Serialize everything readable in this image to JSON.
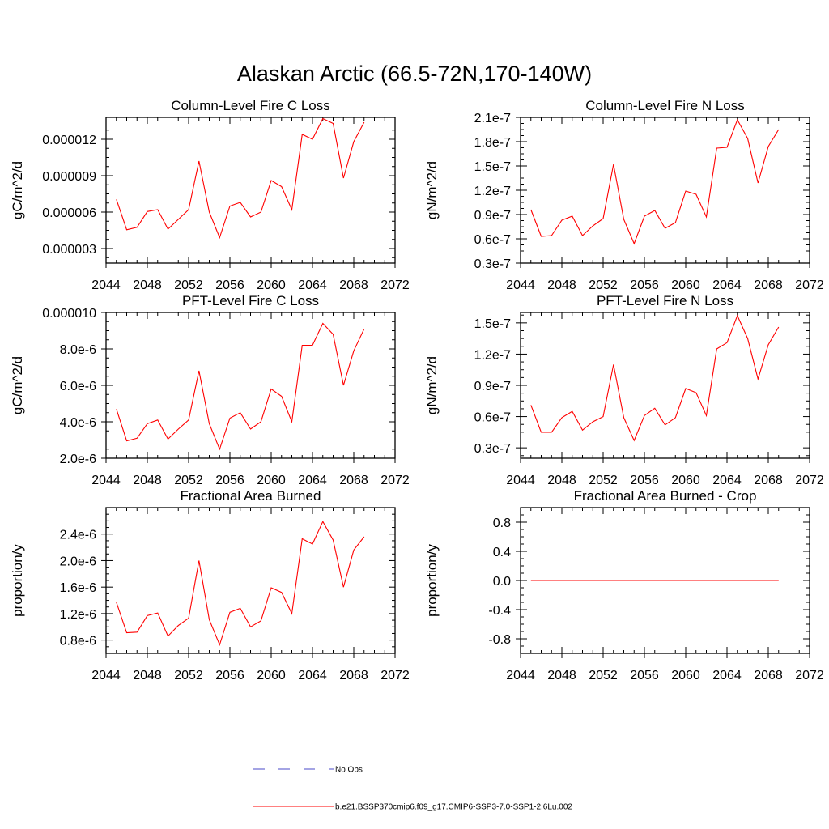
{
  "figure": {
    "title": "Alaskan Arctic (66.5-72N,170-140W)"
  },
  "legend": [
    {
      "label": "No Obs",
      "color": "#4a4ac8",
      "dash": "dashed"
    },
    {
      "label": "b.e21.BSSP370cmip6.f09_g17.CMIP6-SSP3-7.0-SSP1-2.6Lu.002",
      "color": "#ff0000",
      "dash": "solid"
    }
  ],
  "chart_data": [
    {
      "type": "line",
      "title": "Column-Level Fire C Loss",
      "ylabel": "gC/m^2/d",
      "xlim": [
        2044,
        2072
      ],
      "xticks": [
        2044,
        2048,
        2052,
        2056,
        2060,
        2064,
        2068,
        2072
      ],
      "ylim": [
        1.8e-06,
        1.38e-05
      ],
      "yticks": [
        3e-06,
        6e-06,
        9e-06,
        1.2e-05
      ],
      "ytick_labels": [
        "0.000003",
        "0.000006",
        "0.000009",
        "0.000012"
      ],
      "x": [
        2045,
        2046,
        2047,
        2048,
        2049,
        2050,
        2051,
        2052,
        2053,
        2054,
        2055,
        2056,
        2057,
        2058,
        2059,
        2060,
        2061,
        2062,
        2063,
        2064,
        2065,
        2066,
        2067,
        2068,
        2069
      ],
      "series": [
        {
          "color": "#ff0000",
          "values": [
            7.05e-06,
            4.55e-06,
            4.75e-06,
            6.05e-06,
            6.2e-06,
            4.6e-06,
            5.4e-06,
            6.2e-06,
            1.02e-05,
            6e-06,
            3.9e-06,
            6.5e-06,
            6.8e-06,
            5.6e-06,
            6e-06,
            8.6e-06,
            8.1e-06,
            6.2e-06,
            1.24e-05,
            1.2e-05,
            1.37e-05,
            1.33e-05,
            8.8e-06,
            1.18e-05,
            1.34e-05
          ]
        }
      ]
    },
    {
      "type": "line",
      "title": "Column-Level Fire N Loss",
      "ylabel": "gN/m^2/d",
      "xlim": [
        2044,
        2072
      ],
      "xticks": [
        2044,
        2048,
        2052,
        2056,
        2060,
        2064,
        2068,
        2072
      ],
      "ylim": [
        3e-08,
        2.1e-07
      ],
      "yticks": [
        3e-08,
        6e-08,
        9e-08,
        1.2e-07,
        1.5e-07,
        1.8e-07,
        2.1e-07
      ],
      "ytick_labels": [
        "0.3e-7",
        "0.6e-7",
        "0.9e-7",
        "1.2e-7",
        "1.5e-7",
        "1.8e-7",
        "2.1e-7"
      ],
      "x": [
        2045,
        2046,
        2047,
        2048,
        2049,
        2050,
        2051,
        2052,
        2053,
        2054,
        2055,
        2056,
        2057,
        2058,
        2059,
        2060,
        2061,
        2062,
        2063,
        2064,
        2065,
        2066,
        2067,
        2068,
        2069
      ],
      "series": [
        {
          "color": "#ff0000",
          "values": [
            9.6e-08,
            6.3e-08,
            6.4e-08,
            8.3e-08,
            8.8e-08,
            6.4e-08,
            7.6e-08,
            8.5e-08,
            1.52e-07,
            8.4e-08,
            5.4e-08,
            8.8e-08,
            9.5e-08,
            7.3e-08,
            8e-08,
            1.19e-07,
            1.15e-07,
            8.7e-08,
            1.72e-07,
            1.73e-07,
            2.07e-07,
            1.84e-07,
            1.29e-07,
            1.74e-07,
            1.95e-07
          ]
        }
      ]
    },
    {
      "type": "line",
      "title": "PFT-Level Fire C Loss",
      "ylabel": "gC/m^2/d",
      "xlim": [
        2044,
        2072
      ],
      "xticks": [
        2044,
        2048,
        2052,
        2056,
        2060,
        2064,
        2068,
        2072
      ],
      "ylim": [
        2e-06,
        1e-05
      ],
      "yticks": [
        2e-06,
        4e-06,
        6e-06,
        8e-06,
        1e-05
      ],
      "ytick_labels": [
        "2.0e-6",
        "4.0e-6",
        "6.0e-6",
        "8.0e-6",
        "0.000010"
      ],
      "x": [
        2045,
        2046,
        2047,
        2048,
        2049,
        2050,
        2051,
        2052,
        2053,
        2054,
        2055,
        2056,
        2057,
        2058,
        2059,
        2060,
        2061,
        2062,
        2063,
        2064,
        2065,
        2066,
        2067,
        2068,
        2069
      ],
      "series": [
        {
          "color": "#ff0000",
          "values": [
            4.7e-06,
            2.95e-06,
            3.1e-06,
            3.9e-06,
            4.1e-06,
            3.05e-06,
            3.6e-06,
            4.1e-06,
            6.8e-06,
            3.9e-06,
            2.5e-06,
            4.2e-06,
            4.5e-06,
            3.6e-06,
            4e-06,
            5.8e-06,
            5.4e-06,
            4e-06,
            8.2e-06,
            8.2e-06,
            9.4e-06,
            8.8e-06,
            6e-06,
            7.9e-06,
            9.1e-06
          ]
        }
      ]
    },
    {
      "type": "line",
      "title": "PFT-Level Fire N Loss",
      "ylabel": "gN/m^2/d",
      "xlim": [
        2044,
        2072
      ],
      "xticks": [
        2044,
        2048,
        2052,
        2056,
        2060,
        2064,
        2068,
        2072
      ],
      "ylim": [
        2e-08,
        1.6e-07
      ],
      "yticks": [
        3e-08,
        6e-08,
        9e-08,
        1.2e-07,
        1.5e-07
      ],
      "ytick_labels": [
        "0.3e-7",
        "0.6e-7",
        "0.9e-7",
        "1.2e-7",
        "1.5e-7"
      ],
      "x": [
        2045,
        2046,
        2047,
        2048,
        2049,
        2050,
        2051,
        2052,
        2053,
        2054,
        2055,
        2056,
        2057,
        2058,
        2059,
        2060,
        2061,
        2062,
        2063,
        2064,
        2065,
        2066,
        2067,
        2068,
        2069
      ],
      "series": [
        {
          "color": "#ff0000",
          "values": [
            7.1e-08,
            4.5e-08,
            4.5e-08,
            5.9e-08,
            6.5e-08,
            4.7e-08,
            5.5e-08,
            6e-08,
            1.1e-07,
            5.9e-08,
            3.7e-08,
            6.1e-08,
            6.8e-08,
            5.2e-08,
            5.9e-08,
            8.7e-08,
            8.3e-08,
            6.1e-08,
            1.25e-07,
            1.31e-07,
            1.57e-07,
            1.35e-07,
            9.6e-08,
            1.29e-07,
            1.46e-07
          ]
        }
      ]
    },
    {
      "type": "line",
      "title": "Fractional Area Burned",
      "ylabel": "proportion/y",
      "xlim": [
        2044,
        2072
      ],
      "xticks": [
        2044,
        2048,
        2052,
        2056,
        2060,
        2064,
        2068,
        2072
      ],
      "ylim": [
        6e-07,
        2.8e-06
      ],
      "yticks": [
        8e-07,
        1.2e-06,
        1.6e-06,
        2e-06,
        2.4e-06
      ],
      "ytick_labels": [
        "0.8e-6",
        "1.2e-6",
        "1.6e-6",
        "2.0e-6",
        "2.4e-6"
      ],
      "x": [
        2045,
        2046,
        2047,
        2048,
        2049,
        2050,
        2051,
        2052,
        2053,
        2054,
        2055,
        2056,
        2057,
        2058,
        2059,
        2060,
        2061,
        2062,
        2063,
        2064,
        2065,
        2066,
        2067,
        2068,
        2069
      ],
      "series": [
        {
          "color": "#ff0000",
          "values": [
            1.37e-06,
            9.1e-07,
            9.2e-07,
            1.17e-06,
            1.21e-06,
            8.6e-07,
            1.02e-06,
            1.13e-06,
            2e-06,
            1.11e-06,
            7.3e-07,
            1.22e-06,
            1.28e-06,
            1e-06,
            1.09e-06,
            1.59e-06,
            1.52e-06,
            1.2e-06,
            2.33e-06,
            2.25e-06,
            2.59e-06,
            2.31e-06,
            1.6e-06,
            2.16e-06,
            2.36e-06
          ]
        }
      ]
    },
    {
      "type": "line",
      "title": "Fractional Area Burned - Crop",
      "ylabel": "proportion/y",
      "xlim": [
        2044,
        2072
      ],
      "xticks": [
        2044,
        2048,
        2052,
        2056,
        2060,
        2064,
        2068,
        2072
      ],
      "ylim": [
        -1.0,
        1.0
      ],
      "yticks": [
        -0.8,
        -0.4,
        0.0,
        0.4,
        0.8
      ],
      "ytick_labels": [
        "-0.8",
        "-0.4",
        "0.0",
        "0.4",
        "0.8"
      ],
      "x": [
        2045,
        2046,
        2047,
        2048,
        2049,
        2050,
        2051,
        2052,
        2053,
        2054,
        2055,
        2056,
        2057,
        2058,
        2059,
        2060,
        2061,
        2062,
        2063,
        2064,
        2065,
        2066,
        2067,
        2068,
        2069
      ],
      "series": [
        {
          "color": "#ff0000",
          "values": [
            0,
            0,
            0,
            0,
            0,
            0,
            0,
            0,
            0,
            0,
            0,
            0,
            0,
            0,
            0,
            0,
            0,
            0,
            0,
            0,
            0,
            0,
            0,
            0,
            0
          ]
        }
      ]
    }
  ]
}
